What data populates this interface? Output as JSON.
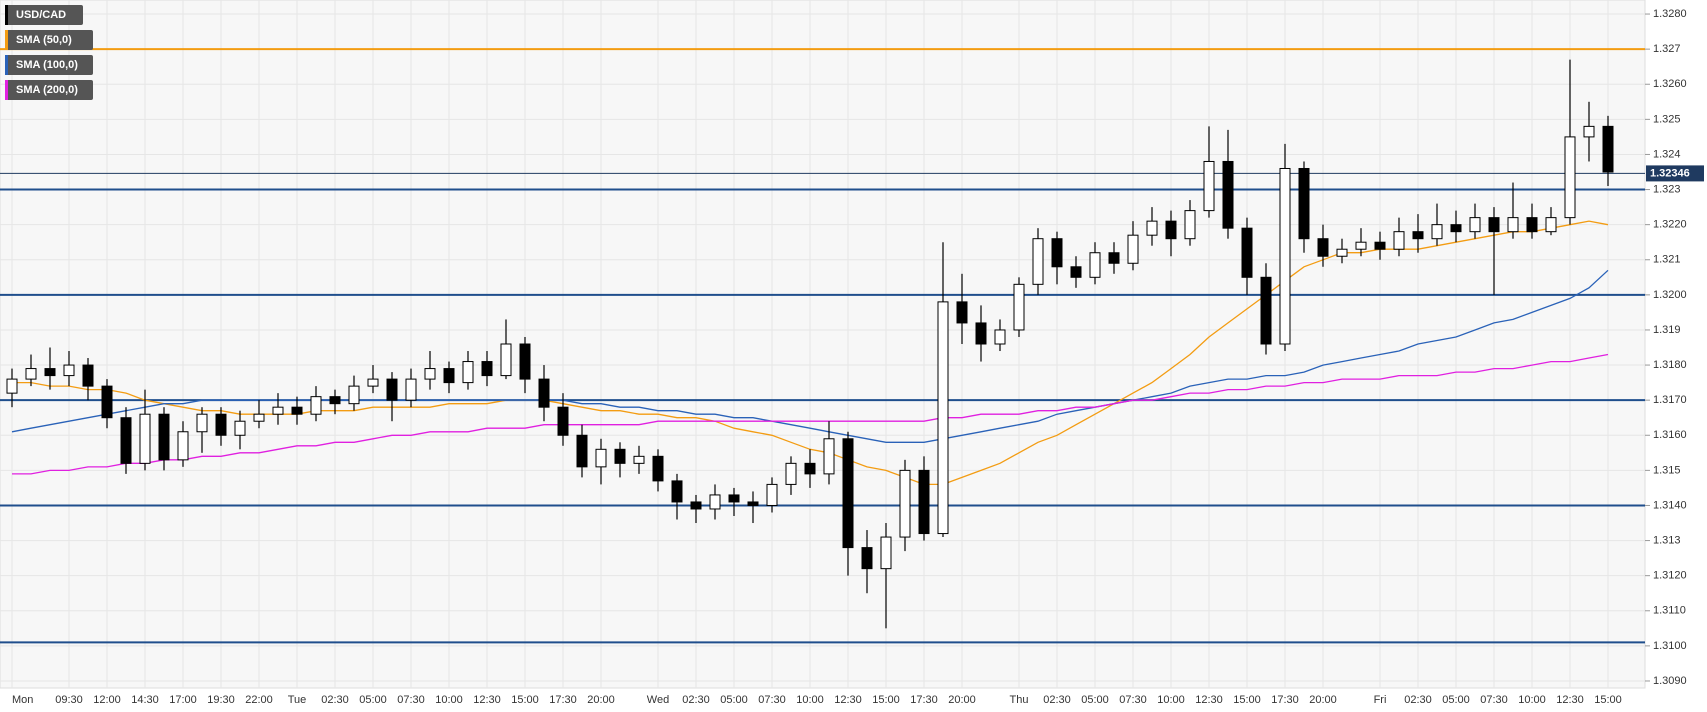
{
  "chart_data": {
    "type": "candlestick",
    "categories": [
      "Mon",
      null,
      null,
      "09:30",
      null,
      "12:00",
      null,
      "14:30",
      null,
      "17:00",
      null,
      "19:30",
      null,
      "22:00",
      null,
      "Tue",
      null,
      "02:30",
      null,
      "05:00",
      null,
      "07:30",
      null,
      "10:00",
      null,
      "12:30",
      null,
      "15:00",
      null,
      "17:30",
      null,
      "20:00",
      null,
      null,
      "Wed",
      null,
      "02:30",
      null,
      "05:00",
      null,
      "07:30",
      null,
      "10:00",
      null,
      "12:30",
      null,
      "15:00",
      null,
      "17:30",
      null,
      "20:00",
      null,
      null,
      "Thu",
      null,
      "02:30",
      null,
      "05:00",
      null,
      "07:30",
      null,
      "10:00",
      null,
      "12:30",
      null,
      "15:00",
      null,
      "17:30",
      null,
      "20:00",
      null,
      null,
      "Fri",
      null,
      "02:30",
      null,
      "05:00",
      null,
      "07:30",
      null,
      "10:00",
      null,
      "12:30",
      null,
      "15:00"
    ],
    "series": [
      {
        "name": "USD/CAD",
        "color": "#000000",
        "open": [
          1.3172,
          1.3176,
          1.3179,
          1.3177,
          1.318,
          1.3174,
          1.3165,
          1.3152,
          1.3166,
          1.3153,
          1.3161,
          1.3166,
          1.316,
          1.3164,
          1.3166,
          1.3168,
          1.3166,
          1.3171,
          1.3169,
          1.3174,
          1.3176,
          1.317,
          1.3176,
          1.3179,
          1.3175,
          1.3181,
          1.3177,
          1.3186,
          1.3176,
          1.3168,
          1.316,
          1.3151,
          1.3156,
          1.3152,
          1.3154,
          1.3147,
          1.3141,
          1.3139,
          1.3143,
          1.3141,
          1.314,
          1.3146,
          1.3152,
          1.3149,
          1.3159,
          1.3128,
          1.3122,
          1.3131,
          1.315,
          1.3132,
          1.3198,
          1.3192,
          1.3186,
          1.319,
          1.3203,
          1.3216,
          1.3208,
          1.3205,
          1.3212,
          1.3209,
          1.3217,
          1.3221,
          1.3216,
          1.3224,
          1.3238,
          1.3219,
          1.3205,
          1.3186,
          1.3236,
          1.3216,
          1.3211,
          1.3213,
          1.3215,
          1.3213,
          1.3218,
          1.3216,
          1.322,
          1.3218,
          1.3222,
          1.3218,
          1.3222,
          1.3218,
          1.3222,
          1.3245,
          1.3248
        ],
        "high": [
          1.3179,
          1.3183,
          1.3185,
          1.3184,
          1.3182,
          1.3176,
          1.3168,
          1.3173,
          1.3168,
          1.3164,
          1.3168,
          1.3168,
          1.3167,
          1.317,
          1.3172,
          1.3171,
          1.3174,
          1.3173,
          1.3177,
          1.318,
          1.3178,
          1.3179,
          1.3184,
          1.3181,
          1.3184,
          1.3184,
          1.3193,
          1.3188,
          1.318,
          1.3172,
          1.3163,
          1.3159,
          1.3158,
          1.3157,
          1.3156,
          1.3149,
          1.3143,
          1.3146,
          1.3145,
          1.3144,
          1.3148,
          1.3154,
          1.3156,
          1.3164,
          1.3161,
          1.3133,
          1.3135,
          1.3153,
          1.3154,
          1.3215,
          1.3206,
          1.3197,
          1.3193,
          1.3205,
          1.3219,
          1.3218,
          1.3211,
          1.3215,
          1.3215,
          1.3221,
          1.3225,
          1.3224,
          1.3227,
          1.3248,
          1.3247,
          1.3222,
          1.3209,
          1.3243,
          1.3238,
          1.322,
          1.3216,
          1.3219,
          1.3218,
          1.3222,
          1.3223,
          1.3226,
          1.3224,
          1.3226,
          1.3225,
          1.3232,
          1.3226,
          1.3225,
          1.3267,
          1.3255,
          1.3251
        ],
        "low": [
          1.3168,
          1.3174,
          1.3173,
          1.3174,
          1.317,
          1.3162,
          1.3149,
          1.315,
          1.315,
          1.3151,
          1.3155,
          1.3157,
          1.3156,
          1.3162,
          1.3163,
          1.3163,
          1.3164,
          1.3166,
          1.3167,
          1.3172,
          1.3164,
          1.3168,
          1.3173,
          1.3172,
          1.3173,
          1.3174,
          1.3176,
          1.3172,
          1.3164,
          1.3157,
          1.3148,
          1.3146,
          1.3148,
          1.3149,
          1.3144,
          1.3136,
          1.3135,
          1.3136,
          1.3137,
          1.3135,
          1.3138,
          1.3143,
          1.3145,
          1.3146,
          1.312,
          1.3115,
          1.3105,
          1.3127,
          1.313,
          1.3131,
          1.3186,
          1.3181,
          1.3184,
          1.3188,
          1.32,
          1.3203,
          1.3202,
          1.3203,
          1.3206,
          1.3207,
          1.3214,
          1.3211,
          1.3214,
          1.3222,
          1.3216,
          1.32,
          1.3183,
          1.3184,
          1.3212,
          1.3208,
          1.3209,
          1.3211,
          1.321,
          1.3211,
          1.3212,
          1.3214,
          1.3215,
          1.3216,
          1.32,
          1.3216,
          1.3216,
          1.3217,
          1.322,
          1.3238,
          1.3231
        ],
        "close": [
          1.3176,
          1.3179,
          1.3177,
          1.318,
          1.3174,
          1.3165,
          1.3152,
          1.3166,
          1.3153,
          1.3161,
          1.3166,
          1.316,
          1.3164,
          1.3166,
          1.3168,
          1.3166,
          1.3171,
          1.3169,
          1.3174,
          1.3176,
          1.317,
          1.3176,
          1.3179,
          1.3175,
          1.3181,
          1.3177,
          1.3186,
          1.3176,
          1.3168,
          1.316,
          1.3151,
          1.3156,
          1.3152,
          1.3154,
          1.3147,
          1.3141,
          1.3139,
          1.3143,
          1.3141,
          1.314,
          1.3146,
          1.3152,
          1.3149,
          1.3159,
          1.3128,
          1.3122,
          1.3131,
          1.315,
          1.3132,
          1.3198,
          1.3192,
          1.3186,
          1.319,
          1.3203,
          1.3216,
          1.3208,
          1.3205,
          1.3212,
          1.3209,
          1.3217,
          1.3221,
          1.3216,
          1.3224,
          1.3238,
          1.3219,
          1.3205,
          1.3186,
          1.3236,
          1.3216,
          1.3211,
          1.3213,
          1.3215,
          1.3213,
          1.3218,
          1.3216,
          1.322,
          1.3218,
          1.3222,
          1.3218,
          1.3222,
          1.3218,
          1.3222,
          1.3245,
          1.3248,
          1.3235
        ]
      },
      {
        "name": "SMA (50,0)",
        "color": "#f39c12",
        "values": [
          1.3175,
          1.3175,
          1.3174,
          1.3174,
          1.3173,
          1.3173,
          1.3172,
          1.317,
          1.3169,
          1.3168,
          1.3167,
          1.3167,
          1.3166,
          1.3166,
          1.3166,
          1.3166,
          1.3167,
          1.3167,
          1.3167,
          1.3168,
          1.3168,
          1.3168,
          1.3168,
          1.3169,
          1.3169,
          1.3169,
          1.317,
          1.317,
          1.317,
          1.3169,
          1.3168,
          1.3167,
          1.3167,
          1.3166,
          1.3166,
          1.3165,
          1.3165,
          1.3164,
          1.3162,
          1.3161,
          1.316,
          1.3158,
          1.3156,
          1.3155,
          1.3153,
          1.3151,
          1.315,
          1.3148,
          1.3146,
          1.3146,
          1.3148,
          1.315,
          1.3152,
          1.3155,
          1.3158,
          1.316,
          1.3163,
          1.3166,
          1.3169,
          1.3172,
          1.3175,
          1.3179,
          1.3183,
          1.3188,
          1.3192,
          1.3196,
          1.32,
          1.3204,
          1.3208,
          1.321,
          1.3212,
          1.3212,
          1.3213,
          1.3213,
          1.3213,
          1.3214,
          1.3215,
          1.3216,
          1.3217,
          1.3218,
          1.3218,
          1.3219,
          1.322,
          1.3221,
          1.322
        ]
      },
      {
        "name": "SMA (100,0)",
        "color": "#2a62b8",
        "values": [
          1.3161,
          1.3162,
          1.3163,
          1.3164,
          1.3165,
          1.3166,
          1.3167,
          1.3168,
          1.3169,
          1.3169,
          1.317,
          1.317,
          1.317,
          1.317,
          1.317,
          1.317,
          1.317,
          1.317,
          1.317,
          1.317,
          1.317,
          1.317,
          1.317,
          1.317,
          1.317,
          1.317,
          1.317,
          1.317,
          1.317,
          1.317,
          1.3169,
          1.3169,
          1.3168,
          1.3168,
          1.3167,
          1.3167,
          1.3166,
          1.3166,
          1.3165,
          1.3165,
          1.3164,
          1.3163,
          1.3162,
          1.3161,
          1.316,
          1.3159,
          1.3158,
          1.3158,
          1.3158,
          1.3159,
          1.316,
          1.3161,
          1.3162,
          1.3163,
          1.3164,
          1.3166,
          1.3167,
          1.3168,
          1.3169,
          1.317,
          1.3171,
          1.3172,
          1.3174,
          1.3175,
          1.3176,
          1.3176,
          1.3177,
          1.3177,
          1.3178,
          1.318,
          1.3181,
          1.3182,
          1.3183,
          1.3184,
          1.3186,
          1.3187,
          1.3188,
          1.319,
          1.3192,
          1.3193,
          1.3195,
          1.3197,
          1.3199,
          1.3202,
          1.3207
        ]
      },
      {
        "name": "SMA (200,0)",
        "color": "#e020e0",
        "values": [
          1.3149,
          1.3149,
          1.315,
          1.315,
          1.3151,
          1.3151,
          1.3152,
          1.3152,
          1.3153,
          1.3153,
          1.3154,
          1.3154,
          1.3155,
          1.3155,
          1.3156,
          1.3157,
          1.3157,
          1.3158,
          1.3158,
          1.3159,
          1.316,
          1.316,
          1.3161,
          1.3161,
          1.3161,
          1.3162,
          1.3162,
          1.3162,
          1.3163,
          1.3163,
          1.3163,
          1.3163,
          1.3163,
          1.3163,
          1.3164,
          1.3164,
          1.3164,
          1.3164,
          1.3164,
          1.3164,
          1.3164,
          1.3164,
          1.3164,
          1.3164,
          1.3164,
          1.3164,
          1.3164,
          1.3164,
          1.3164,
          1.3165,
          1.3165,
          1.3166,
          1.3166,
          1.3166,
          1.3167,
          1.3167,
          1.3168,
          1.3168,
          1.3169,
          1.317,
          1.317,
          1.3171,
          1.3172,
          1.3172,
          1.3173,
          1.3173,
          1.3174,
          1.3174,
          1.3175,
          1.3175,
          1.3176,
          1.3176,
          1.3176,
          1.3177,
          1.3177,
          1.3177,
          1.3178,
          1.3178,
          1.3179,
          1.3179,
          1.318,
          1.3181,
          1.3181,
          1.3182,
          1.3183
        ]
      }
    ],
    "levels": [
      {
        "value": 1.327,
        "color": "#f39c12"
      },
      {
        "value": 1.323,
        "color": "#1f4e8c"
      },
      {
        "value": 1.32,
        "color": "#1f4e8c"
      },
      {
        "value": 1.317,
        "color": "#1f4e8c"
      },
      {
        "value": 1.314,
        "color": "#1f4e8c"
      },
      {
        "value": 1.3101,
        "color": "#1f4e8c"
      }
    ],
    "last_price": 1.32346,
    "ylim": [
      1.3088,
      1.3284
    ],
    "yticks": [
      {
        "value": 1.328,
        "label": "1.3280"
      },
      1.327,
      {
        "value": 1.326,
        "label": "1.3260"
      },
      1.325,
      1.324,
      1.323,
      {
        "value": 1.322,
        "label": "1.3220"
      },
      1.321,
      {
        "value": 1.32,
        "label": "1.3200"
      },
      1.319,
      {
        "value": 1.318,
        "label": "1.3180"
      },
      {
        "value": 1.317,
        "label": "1.3170"
      },
      {
        "value": 1.316,
        "label": "1.3160"
      },
      1.315,
      {
        "value": 1.314,
        "label": "1.3140"
      },
      1.313,
      {
        "value": 1.312,
        "label": "1.3120"
      },
      {
        "value": 1.311,
        "label": "1.3110"
      },
      {
        "value": 1.31,
        "label": "1.3100"
      },
      {
        "value": 1.309,
        "label": "1.3090"
      }
    ],
    "grid": true
  }
}
